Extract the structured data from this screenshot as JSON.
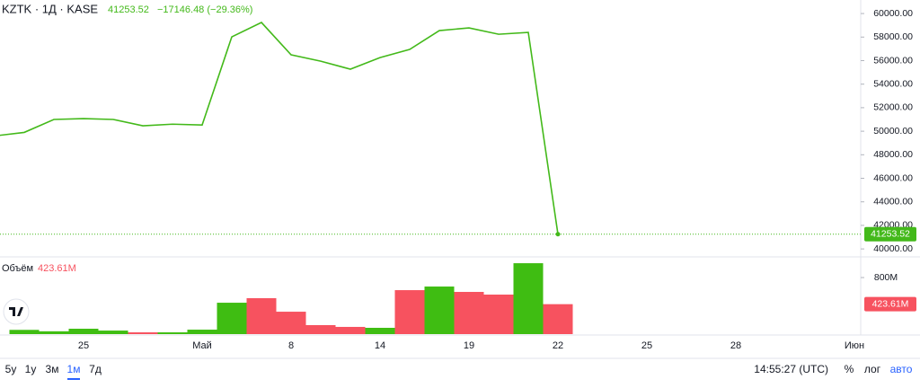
{
  "header": {
    "symbol": "KZTK · 1Д · KASE",
    "change": "−17146.48 (−29.36%)"
  },
  "chart_data": [
    {
      "type": "line",
      "series": [
        {
          "name": "KZTK",
          "color": "#43b91a",
          "values": [
            49600,
            49900,
            51000,
            51070,
            51000,
            50460,
            50600,
            50530,
            58020,
            59240,
            56490,
            55950,
            55270,
            56260,
            56950,
            58550,
            58780,
            58240,
            58400,
            41253.52,
            null,
            null,
            null,
            null,
            null,
            null,
            null,
            null,
            null,
            null
          ]
        }
      ],
      "ylim": [
        39400,
        61150
      ],
      "yticks": [
        {
          "value": 40000,
          "label": "40000.00"
        },
        {
          "value": 42000,
          "label": "42000.00"
        },
        {
          "value": 44000,
          "label": "44000.00"
        },
        {
          "value": 46000,
          "label": "46000.00"
        },
        {
          "value": 48000,
          "label": "48000.00"
        },
        {
          "value": 50000,
          "label": "50000.00"
        },
        {
          "value": 52000,
          "label": "52000.00"
        },
        {
          "value": 54000,
          "label": "54000.00"
        },
        {
          "value": 56000,
          "label": "56000.00"
        },
        {
          "value": 58000,
          "label": "58000.00"
        },
        {
          "value": 60000,
          "label": "60000.00"
        }
      ]
    },
    {
      "type": "bar",
      "title": "Объём",
      "categories": [
        null,
        null,
        null,
        "25",
        null,
        null,
        null,
        "Май",
        null,
        null,
        "8",
        null,
        null,
        "14",
        null,
        null,
        "19",
        null,
        null,
        "22",
        null,
        null,
        "25",
        null,
        null,
        "28",
        null,
        null,
        null,
        "Июн"
      ],
      "series": [
        {
          "name": "Объём",
          "values": [
            null,
            60,
            40,
            76,
            50,
            25,
            25,
            63,
            444,
            508,
            317,
            127,
            102,
            89,
            622,
            673,
            597,
            559,
            1003,
            423.61,
            null,
            null,
            null,
            null,
            null,
            null,
            null,
            null,
            null,
            null
          ],
          "value_labels": [
            null,
            null,
            null,
            null,
            null,
            null,
            null,
            null,
            null,
            null,
            null,
            null,
            null,
            null,
            null,
            null,
            null,
            null,
            null,
            "423.61M",
            null,
            null,
            null,
            null,
            null,
            null,
            null,
            null,
            null,
            null
          ],
          "colors": [
            null,
            "#3fbd12",
            "#3fbd12",
            "#3fbd12",
            "#3fbd12",
            "#f7525f",
            "#3fbd12",
            "#3fbd12",
            "#3fbd12",
            "#f7525f",
            "#f7525f",
            "#f7525f",
            "#f7525f",
            "#3fbd12",
            "#f7525f",
            "#3fbd12",
            "#f7525f",
            "#f7525f",
            "#3fbd12",
            "#f7525f",
            null,
            null,
            null,
            null,
            null,
            null,
            null,
            null,
            null,
            null
          ]
        }
      ],
      "ylim": [
        0,
        1080
      ],
      "yticks": [
        {
          "value": 800,
          "label": "800M"
        }
      ]
    }
  ],
  "toolbar": {
    "ranges": [
      "5y",
      "1y",
      "3м",
      "1м",
      "7д"
    ],
    "time": "14:55:27 (UTC)",
    "percent": "%",
    "log": "лог",
    "auto": "авто"
  }
}
